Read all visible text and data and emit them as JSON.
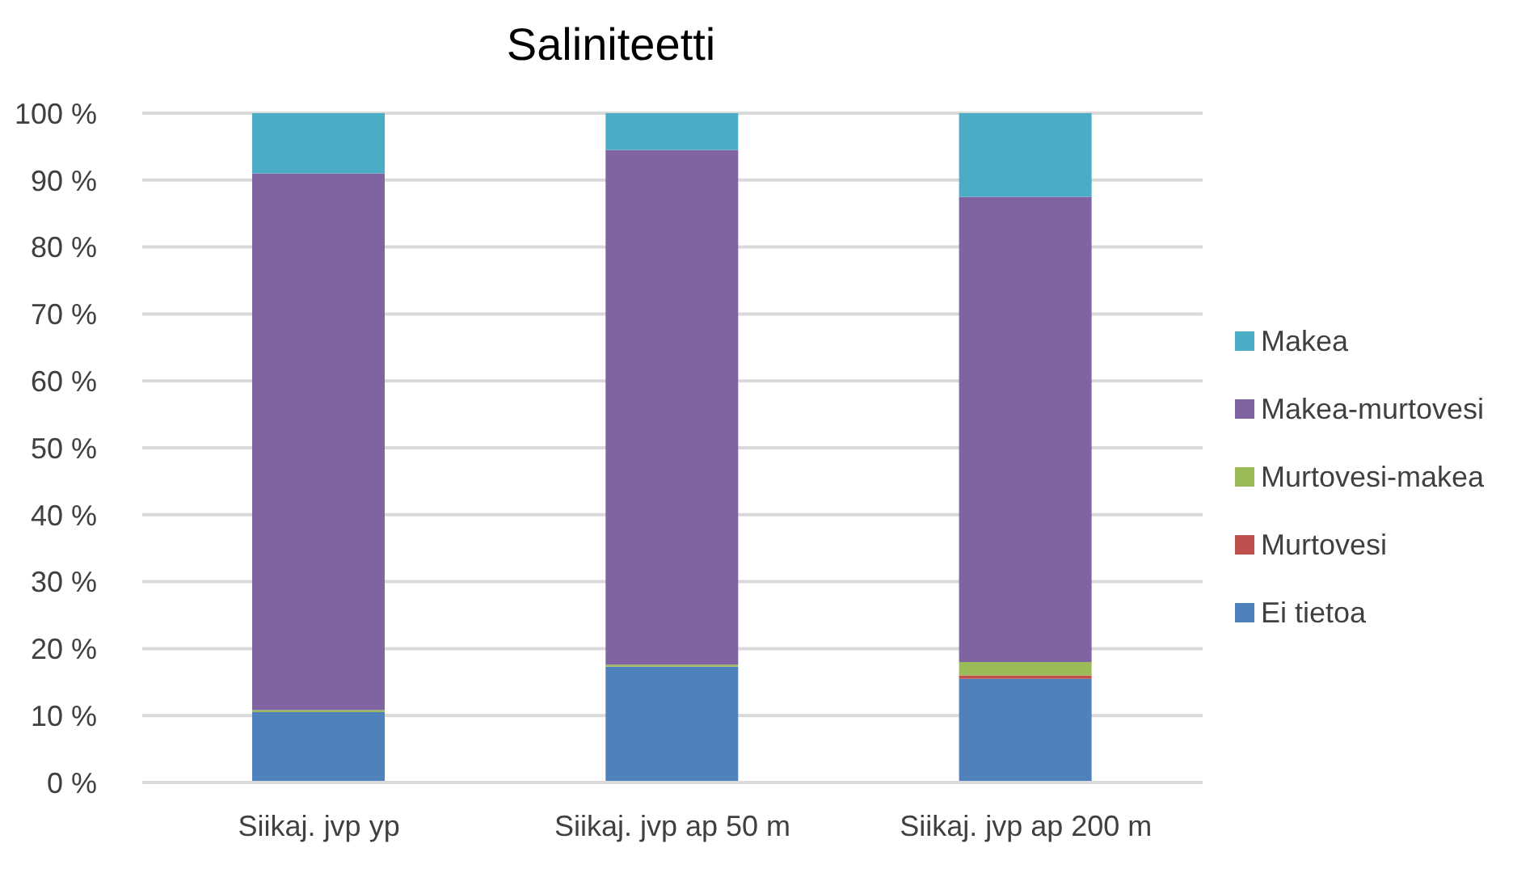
{
  "chart_data": {
    "type": "bar",
    "title": "Saliniteetti",
    "stacked": true,
    "categories": [
      "Siikaj. jvp yp",
      "Siikaj. jvp ap 50 m",
      "Siikaj. jvp ap 200 m"
    ],
    "series": [
      {
        "name": "Ei tietoa",
        "color": "#4f81bd",
        "values": [
          10.5,
          17.3,
          15.5
        ]
      },
      {
        "name": "Murtovesi",
        "color": "#c0504d",
        "values": [
          0,
          0,
          0.5
        ]
      },
      {
        "name": "Murtovesi-makea",
        "color": "#9bbb59",
        "values": [
          0.3,
          0.3,
          2
        ]
      },
      {
        "name": "Makea-murtovesi",
        "color": "#8064a2",
        "values": [
          80.2,
          76.9,
          69.5
        ]
      },
      {
        "name": "Makea",
        "color": "#4bacc6",
        "values": [
          9,
          5.5,
          12.5
        ]
      }
    ],
    "ylim": [
      0,
      100
    ],
    "yticks": [
      {
        "value": 0,
        "label": "0 %"
      },
      {
        "value": 10,
        "label": "10 %"
      },
      {
        "value": 20,
        "label": "20 %"
      },
      {
        "value": 30,
        "label": "30 %"
      },
      {
        "value": 40,
        "label": "40 %"
      },
      {
        "value": 50,
        "label": "50 %"
      },
      {
        "value": 60,
        "label": "60 %"
      },
      {
        "value": 70,
        "label": "70 %"
      },
      {
        "value": 80,
        "label": "80 %"
      },
      {
        "value": 90,
        "label": "90 %"
      },
      {
        "value": 100,
        "label": "100 %"
      }
    ],
    "grid": "y",
    "legend": "right"
  }
}
